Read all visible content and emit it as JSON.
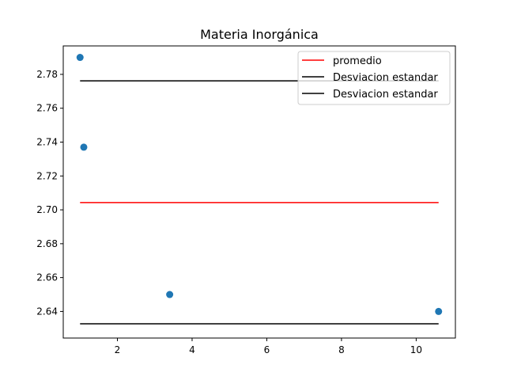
{
  "chart_data": {
    "type": "scatter",
    "title": "Materia Inorgánica",
    "xlabel": "",
    "ylabel": "",
    "xlim": [
      0.55,
      11.05
    ],
    "ylim": [
      2.6243,
      2.7968
    ],
    "x_ticks": [
      2,
      4,
      6,
      8,
      10
    ],
    "y_ticks": [
      2.64,
      2.66,
      2.68,
      2.7,
      2.72,
      2.74,
      2.76,
      2.78
    ],
    "grid": false,
    "legend_placement": "top-right",
    "points": [
      {
        "x": 1.0,
        "y": 2.79
      },
      {
        "x": 1.1,
        "y": 2.737
      },
      {
        "x": 3.4,
        "y": 2.65
      },
      {
        "x": 10.6,
        "y": 2.64
      }
    ],
    "lines": [
      {
        "name": "promedio",
        "x": [
          1.0,
          10.6
        ],
        "y": [
          2.7043,
          2.7043
        ],
        "color": "#ff0000"
      },
      {
        "name": "Desviacion estandar",
        "x": [
          1.0,
          10.6
        ],
        "y": [
          2.7762,
          2.7762
        ],
        "color": "#000000"
      },
      {
        "name": "Desviacion estandar",
        "x": [
          1.0,
          10.6
        ],
        "y": [
          2.6327,
          2.6327
        ],
        "color": "#000000"
      }
    ],
    "point_color": "#1f77b4"
  }
}
